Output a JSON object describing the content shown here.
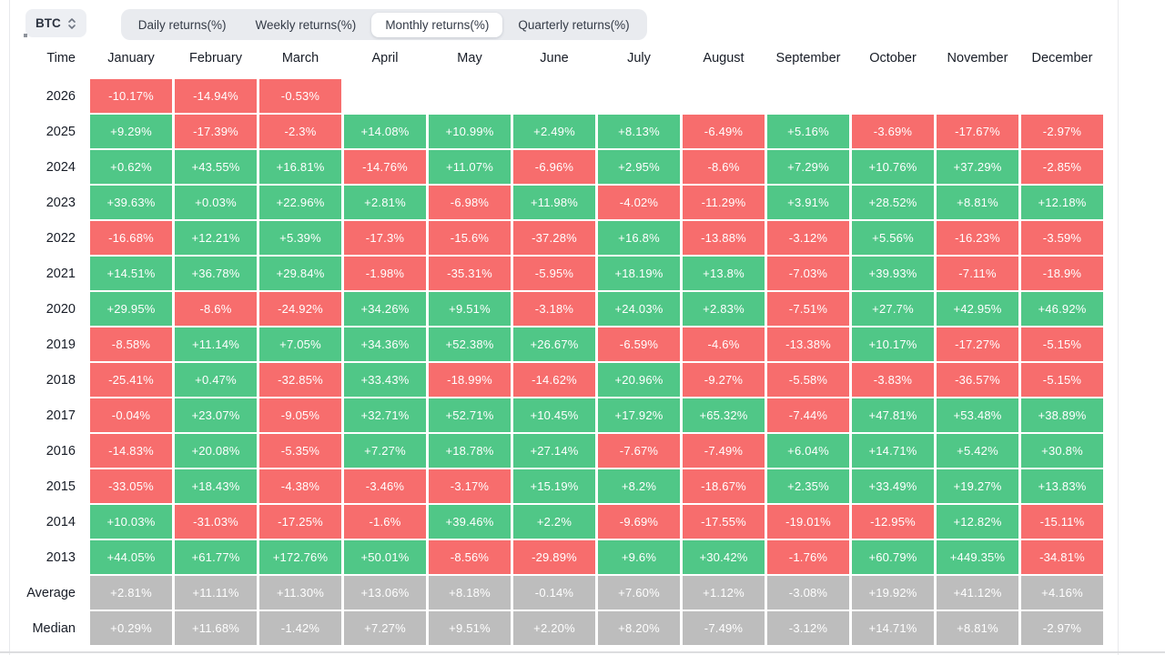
{
  "symbol_selector": {
    "value": "BTC",
    "icon": "chevron-up-down-icon"
  },
  "tabs": [
    {
      "label": "Daily returns(%)",
      "active": false
    },
    {
      "label": "Weekly returns(%)",
      "active": false
    },
    {
      "label": "Monthly returns(%)",
      "active": true
    },
    {
      "label": "Quarterly returns(%)",
      "active": false
    }
  ],
  "chart_data": {
    "type": "heatmap",
    "title": "Monthly returns(%)",
    "symbol": "BTC",
    "time_header": "Time",
    "columns": [
      "January",
      "February",
      "March",
      "April",
      "May",
      "June",
      "July",
      "August",
      "September",
      "October",
      "November",
      "December"
    ],
    "rows": [
      {
        "label": "2026",
        "summary": false,
        "values": [
          "-10.17%",
          "-14.94%",
          "-0.53%",
          null,
          null,
          null,
          null,
          null,
          null,
          null,
          null,
          null
        ]
      },
      {
        "label": "2025",
        "summary": false,
        "values": [
          "+9.29%",
          "-17.39%",
          "-2.3%",
          "+14.08%",
          "+10.99%",
          "+2.49%",
          "+8.13%",
          "-6.49%",
          "+5.16%",
          "-3.69%",
          "-17.67%",
          "-2.97%"
        ]
      },
      {
        "label": "2024",
        "summary": false,
        "values": [
          "+0.62%",
          "+43.55%",
          "+16.81%",
          "-14.76%",
          "+11.07%",
          "-6.96%",
          "+2.95%",
          "-8.6%",
          "+7.29%",
          "+10.76%",
          "+37.29%",
          "-2.85%"
        ]
      },
      {
        "label": "2023",
        "summary": false,
        "values": [
          "+39.63%",
          "+0.03%",
          "+22.96%",
          "+2.81%",
          "-6.98%",
          "+11.98%",
          "-4.02%",
          "-11.29%",
          "+3.91%",
          "+28.52%",
          "+8.81%",
          "+12.18%"
        ]
      },
      {
        "label": "2022",
        "summary": false,
        "values": [
          "-16.68%",
          "+12.21%",
          "+5.39%",
          "-17.3%",
          "-15.6%",
          "-37.28%",
          "+16.8%",
          "-13.88%",
          "-3.12%",
          "+5.56%",
          "-16.23%",
          "-3.59%"
        ]
      },
      {
        "label": "2021",
        "summary": false,
        "values": [
          "+14.51%",
          "+36.78%",
          "+29.84%",
          "-1.98%",
          "-35.31%",
          "-5.95%",
          "+18.19%",
          "+13.8%",
          "-7.03%",
          "+39.93%",
          "-7.11%",
          "-18.9%"
        ]
      },
      {
        "label": "2020",
        "summary": false,
        "values": [
          "+29.95%",
          "-8.6%",
          "-24.92%",
          "+34.26%",
          "+9.51%",
          "-3.18%",
          "+24.03%",
          "+2.83%",
          "-7.51%",
          "+27.7%",
          "+42.95%",
          "+46.92%"
        ]
      },
      {
        "label": "2019",
        "summary": false,
        "values": [
          "-8.58%",
          "+11.14%",
          "+7.05%",
          "+34.36%",
          "+52.38%",
          "+26.67%",
          "-6.59%",
          "-4.6%",
          "-13.38%",
          "+10.17%",
          "-17.27%",
          "-5.15%"
        ]
      },
      {
        "label": "2018",
        "summary": false,
        "values": [
          "-25.41%",
          "+0.47%",
          "-32.85%",
          "+33.43%",
          "-18.99%",
          "-14.62%",
          "+20.96%",
          "-9.27%",
          "-5.58%",
          "-3.83%",
          "-36.57%",
          "-5.15%"
        ]
      },
      {
        "label": "2017",
        "summary": false,
        "values": [
          "-0.04%",
          "+23.07%",
          "-9.05%",
          "+32.71%",
          "+52.71%",
          "+10.45%",
          "+17.92%",
          "+65.32%",
          "-7.44%",
          "+47.81%",
          "+53.48%",
          "+38.89%"
        ]
      },
      {
        "label": "2016",
        "summary": false,
        "values": [
          "-14.83%",
          "+20.08%",
          "-5.35%",
          "+7.27%",
          "+18.78%",
          "+27.14%",
          "-7.67%",
          "-7.49%",
          "+6.04%",
          "+14.71%",
          "+5.42%",
          "+30.8%"
        ]
      },
      {
        "label": "2015",
        "summary": false,
        "values": [
          "-33.05%",
          "+18.43%",
          "-4.38%",
          "-3.46%",
          "-3.17%",
          "+15.19%",
          "+8.2%",
          "-18.67%",
          "+2.35%",
          "+33.49%",
          "+19.27%",
          "+13.83%"
        ]
      },
      {
        "label": "2014",
        "summary": false,
        "values": [
          "+10.03%",
          "-31.03%",
          "-17.25%",
          "-1.6%",
          "+39.46%",
          "+2.2%",
          "-9.69%",
          "-17.55%",
          "-19.01%",
          "-12.95%",
          "+12.82%",
          "-15.11%"
        ]
      },
      {
        "label": "2013",
        "summary": false,
        "values": [
          "+44.05%",
          "+61.77%",
          "+172.76%",
          "+50.01%",
          "-8.56%",
          "-29.89%",
          "+9.6%",
          "+30.42%",
          "-1.76%",
          "+60.79%",
          "+449.35%",
          "-34.81%"
        ]
      },
      {
        "label": "Average",
        "summary": true,
        "values": [
          "+2.81%",
          "+11.11%",
          "+11.30%",
          "+13.06%",
          "+8.18%",
          "-0.14%",
          "+7.60%",
          "+1.12%",
          "-3.08%",
          "+19.92%",
          "+41.12%",
          "+4.16%"
        ]
      },
      {
        "label": "Median",
        "summary": true,
        "values": [
          "+0.29%",
          "+11.68%",
          "-1.42%",
          "+7.27%",
          "+9.51%",
          "+2.20%",
          "+8.20%",
          "-7.49%",
          "-3.12%",
          "+14.71%",
          "+8.81%",
          "-2.97%"
        ]
      }
    ],
    "colors": {
      "positive": "#50c787",
      "negative": "#f76d6d",
      "summary": "#bdbdbd"
    }
  }
}
